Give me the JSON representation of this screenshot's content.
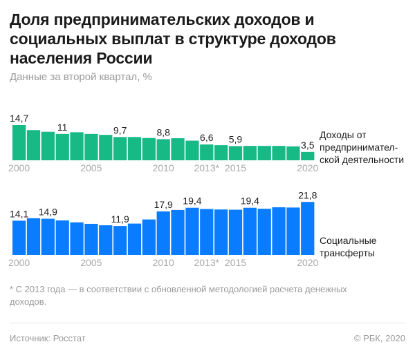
{
  "title": "Доля предпринимательских доходов и социальных выплат в структуре доходов населения России",
  "subtitle": "Данные за второй квартал, %",
  "footnote": "* С 2013 года — в соответствии с обновленной методологией расчета денежных доходов.",
  "source": "Источник: Росстат",
  "copyright": "© РБК, 2020",
  "chart_data": [
    {
      "type": "bar",
      "title": "Доходы от предпринимательской деятельности",
      "series_label_lines": [
        "Доходы от",
        "предпринимател-",
        "ской деятельности"
      ],
      "color": "#17b985",
      "categories": [
        "2000",
        "2001",
        "2002",
        "2003",
        "2004",
        "2005",
        "2006",
        "2007",
        "2008",
        "2009",
        "2010",
        "2011",
        "2012",
        "2013",
        "2014",
        "2015",
        "2016",
        "2017",
        "2018",
        "2019",
        "2020"
      ],
      "values": [
        14.7,
        12.6,
        11.9,
        11.0,
        11.7,
        11.0,
        10.6,
        9.7,
        9.7,
        9.3,
        8.8,
        9.2,
        8.2,
        6.6,
        6.3,
        5.9,
        6.0,
        6.0,
        6.0,
        5.8,
        3.5
      ],
      "data_labels": {
        "2000": "14,7",
        "2003": "11",
        "2007": "9,7",
        "2010": "8,8",
        "2013": "6,6",
        "2015": "5,9",
        "2020": "3,5"
      },
      "tick_labels": {
        "2000": "2000",
        "2005": "2005",
        "2010": "2010",
        "2013": "2013*",
        "2015": "2015",
        "2020": "2020"
      },
      "xlabel": "",
      "ylabel": "",
      "ylim": [
        0,
        15
      ],
      "grid": false
    },
    {
      "type": "bar",
      "title": "Социальные трансферты",
      "series_label_lines": [
        "Социальные",
        "трансферты"
      ],
      "color": "#0a7cff",
      "categories": [
        "2000",
        "2001",
        "2002",
        "2003",
        "2004",
        "2005",
        "2006",
        "2007",
        "2008",
        "2009",
        "2010",
        "2011",
        "2012",
        "2013",
        "2014",
        "2015",
        "2016",
        "2017",
        "2018",
        "2019",
        "2020"
      ],
      "values": [
        14.1,
        15.1,
        14.9,
        14.2,
        13.4,
        12.8,
        12.2,
        11.9,
        12.9,
        14.6,
        17.9,
        18.5,
        19.4,
        18.9,
        18.7,
        18.6,
        19.4,
        19.0,
        19.6,
        19.5,
        21.8
      ],
      "data_labels": {
        "2000": "14,1",
        "2002": "14,9",
        "2007": "11,9",
        "2010": "17,9",
        "2012": "19,4",
        "2016": "19,4",
        "2020": "21,8"
      },
      "tick_labels": {
        "2000": "2000",
        "2005": "2005",
        "2010": "2010",
        "2013": "2013*",
        "2015": "2015",
        "2020": "2020"
      },
      "xlabel": "",
      "ylabel": "",
      "ylim": [
        0,
        22
      ],
      "grid": false
    }
  ]
}
